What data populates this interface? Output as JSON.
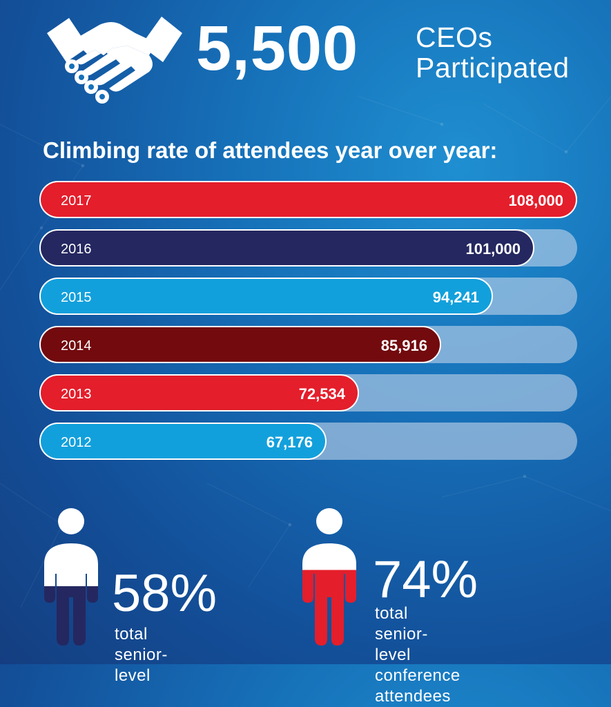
{
  "header": {
    "big_number": "5,500",
    "label_line1": "CEOs",
    "label_line2": "Participated"
  },
  "subtitle": "Climbing rate of attendees year over year:",
  "colors": {
    "red": "#e41e2b",
    "navy": "#252760",
    "sky": "#12a0dc",
    "maroon": "#720a0e",
    "white": "#ffffff"
  },
  "chart_data": {
    "type": "bar",
    "orientation": "horizontal",
    "categories": [
      "2017",
      "2016",
      "2015",
      "2014",
      "2013",
      "2012"
    ],
    "values": [
      108000,
      101000,
      94241,
      85916,
      72534,
      67176
    ],
    "value_labels": [
      "108,000",
      "101,000",
      "94,241",
      "85,916",
      "72,534",
      "67,176"
    ],
    "bar_colors": [
      "#e41e2b",
      "#252760",
      "#12a0dc",
      "#720a0e",
      "#e41e2b",
      "#12a0dc"
    ],
    "title": "Climbing rate of attendees year over year:"
  },
  "stats": [
    {
      "percent_label": "58%",
      "percent": 58,
      "description": [
        "total senior-level"
      ],
      "fill_color": "#252760"
    },
    {
      "percent_label": "74%",
      "percent": 74,
      "description": [
        "total senior-level",
        "conference attendees"
      ],
      "fill_color": "#e41e2b"
    }
  ]
}
